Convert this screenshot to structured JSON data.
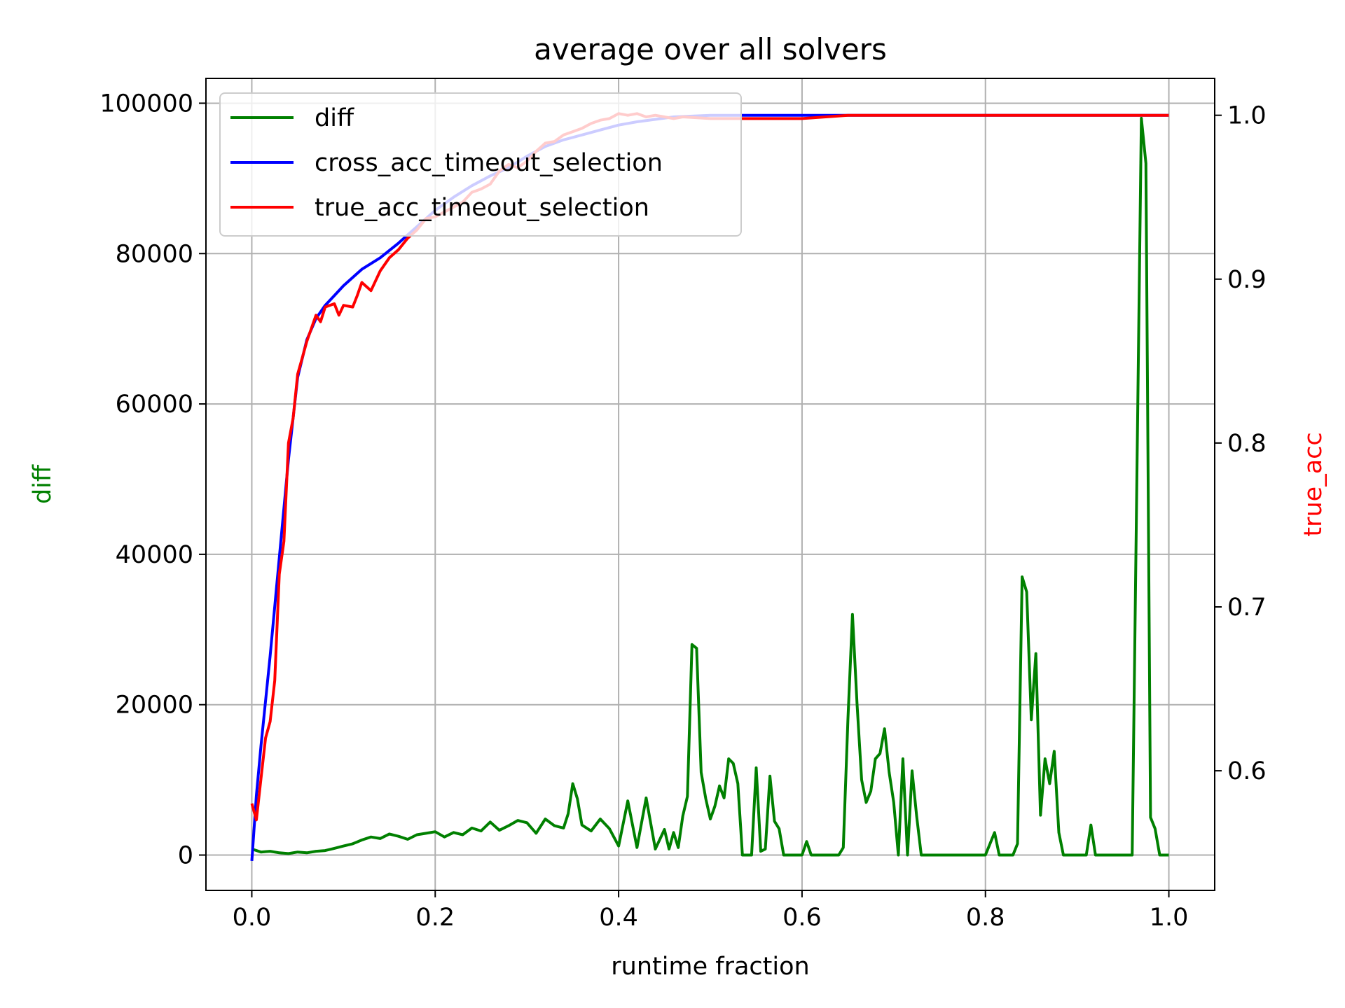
{
  "chart_data": {
    "type": "line",
    "title": "average over all solvers",
    "xlabel": "runtime fraction",
    "ylabel_left": "diff",
    "ylabel_right": "true_acc",
    "xlim": [
      -0.05,
      1.05
    ],
    "ylim_left": [
      -4700,
      103300
    ],
    "ylim_right": [
      0.527,
      1.0225
    ],
    "xticks": [
      "0.0",
      "0.2",
      "0.4",
      "0.6",
      "0.8",
      "1.0"
    ],
    "xtick_values": [
      0.0,
      0.2,
      0.4,
      0.6,
      0.8,
      1.0
    ],
    "yticks_left": [
      "0",
      "20000",
      "40000",
      "60000",
      "80000",
      "100000"
    ],
    "ytick_values_left": [
      0,
      20000,
      40000,
      60000,
      80000,
      100000
    ],
    "yticks_right": [
      "0.6",
      "0.7",
      "0.8",
      "0.9",
      "1.0"
    ],
    "ytick_values_right": [
      0.6,
      0.7,
      0.8,
      0.9,
      1.0
    ],
    "grid": true,
    "legend_position": "top-left",
    "colors": {
      "diff": "#008000",
      "cross": "#0000ff",
      "true": "#ff0000",
      "ylabel_left": "#008000",
      "ylabel_right": "#ff0000"
    },
    "series": [
      {
        "name": "diff",
        "axis": "left",
        "color": "#008000",
        "points": [
          [
            0,
            800
          ],
          [
            0.01,
            400
          ],
          [
            0.02,
            500
          ],
          [
            0.03,
            300
          ],
          [
            0.04,
            200
          ],
          [
            0.05,
            400
          ],
          [
            0.06,
            300
          ],
          [
            0.07,
            500
          ],
          [
            0.08,
            600
          ],
          [
            0.09,
            900
          ],
          [
            0.1,
            1200
          ],
          [
            0.11,
            1500
          ],
          [
            0.12,
            2000
          ],
          [
            0.13,
            2400
          ],
          [
            0.14,
            2200
          ],
          [
            0.15,
            2800
          ],
          [
            0.16,
            2500
          ],
          [
            0.17,
            2100
          ],
          [
            0.18,
            2700
          ],
          [
            0.19,
            2900
          ],
          [
            0.2,
            3100
          ],
          [
            0.21,
            2400
          ],
          [
            0.22,
            3000
          ],
          [
            0.23,
            2700
          ],
          [
            0.24,
            3600
          ],
          [
            0.25,
            3200
          ],
          [
            0.26,
            4400
          ],
          [
            0.27,
            3300
          ],
          [
            0.28,
            3900
          ],
          [
            0.29,
            4600
          ],
          [
            0.3,
            4300
          ],
          [
            0.31,
            2900
          ],
          [
            0.32,
            4800
          ],
          [
            0.33,
            3900
          ],
          [
            0.34,
            3600
          ],
          [
            0.345,
            5500
          ],
          [
            0.35,
            9500
          ],
          [
            0.355,
            7500
          ],
          [
            0.36,
            4000
          ],
          [
            0.37,
            3200
          ],
          [
            0.38,
            4800
          ],
          [
            0.39,
            3500
          ],
          [
            0.4,
            1200
          ],
          [
            0.41,
            7200
          ],
          [
            0.42,
            1000
          ],
          [
            0.43,
            7600
          ],
          [
            0.44,
            800
          ],
          [
            0.45,
            3400
          ],
          [
            0.455,
            800
          ],
          [
            0.46,
            3000
          ],
          [
            0.465,
            1000
          ],
          [
            0.47,
            5200
          ],
          [
            0.475,
            7800
          ],
          [
            0.48,
            28000
          ],
          [
            0.485,
            27500
          ],
          [
            0.49,
            11000
          ],
          [
            0.495,
            7500
          ],
          [
            0.5,
            4800
          ],
          [
            0.505,
            6500
          ],
          [
            0.51,
            9200
          ],
          [
            0.515,
            7600
          ],
          [
            0.52,
            12800
          ],
          [
            0.525,
            12200
          ],
          [
            0.53,
            9500
          ],
          [
            0.535,
            0
          ],
          [
            0.545,
            0
          ],
          [
            0.55,
            11600
          ],
          [
            0.555,
            500
          ],
          [
            0.56,
            800
          ],
          [
            0.565,
            10500
          ],
          [
            0.57,
            4500
          ],
          [
            0.575,
            3500
          ],
          [
            0.58,
            0
          ],
          [
            0.59,
            0
          ],
          [
            0.6,
            0
          ],
          [
            0.605,
            1800
          ],
          [
            0.61,
            0
          ],
          [
            0.63,
            0
          ],
          [
            0.64,
            0
          ],
          [
            0.645,
            1000
          ],
          [
            0.65,
            18000
          ],
          [
            0.655,
            32000
          ],
          [
            0.66,
            20000
          ],
          [
            0.665,
            10000
          ],
          [
            0.67,
            7000
          ],
          [
            0.675,
            8500
          ],
          [
            0.68,
            12800
          ],
          [
            0.685,
            13500
          ],
          [
            0.69,
            16800
          ],
          [
            0.695,
            11000
          ],
          [
            0.7,
            7000
          ],
          [
            0.705,
            0
          ],
          [
            0.71,
            12800
          ],
          [
            0.715,
            0
          ],
          [
            0.72,
            11200
          ],
          [
            0.725,
            5200
          ],
          [
            0.73,
            0
          ],
          [
            0.74,
            0
          ],
          [
            0.75,
            0
          ],
          [
            0.8,
            0
          ],
          [
            0.81,
            3000
          ],
          [
            0.815,
            0
          ],
          [
            0.82,
            0
          ],
          [
            0.83,
            0
          ],
          [
            0.835,
            1500
          ],
          [
            0.84,
            37000
          ],
          [
            0.845,
            35000
          ],
          [
            0.85,
            18000
          ],
          [
            0.855,
            26800
          ],
          [
            0.86,
            5300
          ],
          [
            0.865,
            12800
          ],
          [
            0.87,
            9500
          ],
          [
            0.875,
            13800
          ],
          [
            0.88,
            3000
          ],
          [
            0.885,
            0
          ],
          [
            0.9,
            0
          ],
          [
            0.91,
            0
          ],
          [
            0.915,
            4000
          ],
          [
            0.92,
            0
          ],
          [
            0.95,
            0
          ],
          [
            0.96,
            0
          ],
          [
            0.97,
            98000
          ],
          [
            0.975,
            92000
          ],
          [
            0.98,
            5000
          ],
          [
            0.985,
            3500
          ],
          [
            0.99,
            0
          ],
          [
            1.0,
            0
          ]
        ]
      },
      {
        "name": "cross_acc_timeout_selection",
        "axis": "right",
        "color": "#0000ff",
        "points": [
          [
            0,
            0.545
          ],
          [
            0.005,
            0.585
          ],
          [
            0.01,
            0.615
          ],
          [
            0.02,
            0.67
          ],
          [
            0.03,
            0.73
          ],
          [
            0.04,
            0.79
          ],
          [
            0.05,
            0.84
          ],
          [
            0.06,
            0.863
          ],
          [
            0.07,
            0.876
          ],
          [
            0.08,
            0.884
          ],
          [
            0.09,
            0.89
          ],
          [
            0.1,
            0.896
          ],
          [
            0.12,
            0.906
          ],
          [
            0.14,
            0.913
          ],
          [
            0.16,
            0.922
          ],
          [
            0.18,
            0.932
          ],
          [
            0.2,
            0.942
          ],
          [
            0.22,
            0.95
          ],
          [
            0.24,
            0.957
          ],
          [
            0.26,
            0.963
          ],
          [
            0.28,
            0.968
          ],
          [
            0.3,
            0.975
          ],
          [
            0.32,
            0.981
          ],
          [
            0.34,
            0.985
          ],
          [
            0.36,
            0.988
          ],
          [
            0.38,
            0.991
          ],
          [
            0.4,
            0.994
          ],
          [
            0.42,
            0.996
          ],
          [
            0.44,
            0.9975
          ],
          [
            0.46,
            0.999
          ],
          [
            0.5,
            1.0
          ],
          [
            0.6,
            1.0
          ],
          [
            0.7,
            1.0
          ],
          [
            0.8,
            1.0
          ],
          [
            0.9,
            1.0
          ],
          [
            1.0,
            1.0
          ]
        ]
      },
      {
        "name": "true_acc_timeout_selection",
        "axis": "right",
        "color": "#ff0000",
        "points": [
          [
            0,
            0.58
          ],
          [
            0.005,
            0.57
          ],
          [
            0.01,
            0.595
          ],
          [
            0.015,
            0.62
          ],
          [
            0.02,
            0.63
          ],
          [
            0.025,
            0.655
          ],
          [
            0.03,
            0.72
          ],
          [
            0.035,
            0.74
          ],
          [
            0.04,
            0.8
          ],
          [
            0.045,
            0.815
          ],
          [
            0.05,
            0.842
          ],
          [
            0.055,
            0.852
          ],
          [
            0.06,
            0.862
          ],
          [
            0.07,
            0.878
          ],
          [
            0.075,
            0.874
          ],
          [
            0.08,
            0.883
          ],
          [
            0.09,
            0.885
          ],
          [
            0.095,
            0.878
          ],
          [
            0.1,
            0.884
          ],
          [
            0.11,
            0.883
          ],
          [
            0.115,
            0.89
          ],
          [
            0.12,
            0.898
          ],
          [
            0.13,
            0.893
          ],
          [
            0.14,
            0.905
          ],
          [
            0.15,
            0.913
          ],
          [
            0.16,
            0.918
          ],
          [
            0.17,
            0.925
          ],
          [
            0.18,
            0.93
          ],
          [
            0.19,
            0.937
          ],
          [
            0.2,
            0.938
          ],
          [
            0.21,
            0.941
          ],
          [
            0.22,
            0.944
          ],
          [
            0.23,
            0.947
          ],
          [
            0.24,
            0.953
          ],
          [
            0.25,
            0.955
          ],
          [
            0.26,
            0.958
          ],
          [
            0.27,
            0.966
          ],
          [
            0.28,
            0.97
          ],
          [
            0.29,
            0.968
          ],
          [
            0.3,
            0.972
          ],
          [
            0.31,
            0.978
          ],
          [
            0.32,
            0.983
          ],
          [
            0.33,
            0.984
          ],
          [
            0.34,
            0.988
          ],
          [
            0.35,
            0.99
          ],
          [
            0.36,
            0.992
          ],
          [
            0.37,
            0.995
          ],
          [
            0.38,
            0.997
          ],
          [
            0.39,
            0.998
          ],
          [
            0.4,
            1.001
          ],
          [
            0.41,
            1.0
          ],
          [
            0.42,
            1.001
          ],
          [
            0.43,
            0.999
          ],
          [
            0.44,
            1.0
          ],
          [
            0.45,
            0.999
          ],
          [
            0.46,
            0.998
          ],
          [
            0.47,
            0.999
          ],
          [
            0.5,
            0.998
          ],
          [
            0.55,
            0.998
          ],
          [
            0.6,
            0.998
          ],
          [
            0.65,
            1.0
          ],
          [
            0.7,
            1.0
          ],
          [
            0.75,
            1.0
          ],
          [
            0.8,
            1.0
          ],
          [
            0.9,
            1.0
          ],
          [
            1.0,
            1.0
          ]
        ]
      }
    ]
  }
}
